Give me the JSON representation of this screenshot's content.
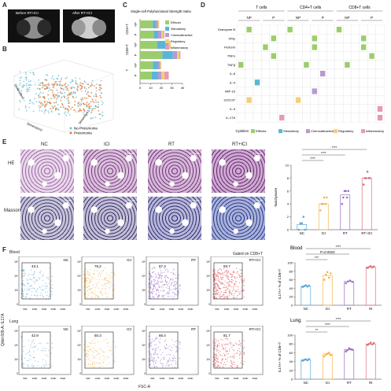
{
  "panels": {
    "A": {
      "letter": "A",
      "before": "Before RT+ICI",
      "after": "After RT+ICI"
    },
    "B": {
      "letter": "B",
      "axis1": "Dimension1",
      "axis2": "Dimension2",
      "axis3": "Dimension3",
      "ticks_d1": [
        "-10",
        "-5",
        "0",
        "5",
        "10"
      ],
      "ticks_d2": [
        "-10",
        "-5",
        "0",
        "5",
        "10"
      ],
      "ticks_d3": [
        "-10",
        "0",
        "10"
      ],
      "legend": [
        "No Pneumonia",
        "Pneumonia"
      ],
      "colors": {
        "no": "#6fc4d4",
        "yes": "#e07a3a"
      }
    },
    "C": {
      "letter": "C"
    },
    "D": {
      "letter": "D"
    },
    "E": {
      "letter": "E",
      "row_he": "HE",
      "row_masson": "Masson",
      "cols": [
        "NC",
        "ICI",
        "RT",
        "RT+ICI"
      ],
      "scale": "100μm"
    },
    "F": {
      "letter": "F",
      "gate": "Gated on CD8+T",
      "row_blood": "Blood",
      "row_lung": "Lung",
      "cols": [
        "NC",
        "ICI",
        "RT",
        "RT+ICI"
      ],
      "blood_pct": [
        "43.1",
        "76.2",
        "57.3",
        "93.7"
      ],
      "lung_pct": [
        "42.9",
        "50.3",
        "66.4",
        "81.7"
      ],
      "yaxis": "Qdot 605-A::IL17A",
      "xaxis": "FSC-A",
      "xticks": [
        "50K",
        "100K",
        "150K",
        "200K",
        "250K"
      ],
      "yticks": [
        "10⁵",
        "10⁴",
        "10³",
        "0"
      ]
    }
  },
  "chart_data": [
    {
      "type": "bar",
      "orientation": "horizontal",
      "id": "C",
      "title": "Single-cell Polyfunctional Strength Index",
      "categories": [
        "NP",
        "P",
        "NP",
        "P",
        "NP",
        "P"
      ],
      "groups": [
        "CD4+T",
        "CD8+T",
        "T"
      ],
      "xticks": [
        "0",
        "10",
        "20",
        "30",
        "40"
      ],
      "xlim": [
        0,
        40
      ],
      "series": [
        {
          "name": "Effector",
          "color": "#9ccd6c",
          "values": [
            12,
            13,
            16,
            21,
            12,
            11
          ]
        },
        {
          "name": "Stimulatory",
          "color": "#5bb5d6",
          "values": [
            3,
            4,
            8,
            10,
            5,
            6
          ]
        },
        {
          "name": "Chemoattractive",
          "color": "#b79bd0",
          "values": [
            2,
            3,
            3,
            4,
            2,
            3
          ]
        },
        {
          "name": "Regulatory",
          "color": "#f2cf7a",
          "values": [
            1,
            2,
            2,
            2,
            1,
            3
          ]
        },
        {
          "name": "Inflammatory",
          "color": "#e69bb3",
          "values": [
            0,
            1,
            0,
            1,
            0,
            4
          ]
        }
      ]
    },
    {
      "type": "heatmap",
      "id": "D",
      "groups": [
        "T cells",
        "CD4+T cells",
        "CD8+T cells"
      ],
      "subgroups": [
        "NP",
        "P",
        "NP",
        "P",
        "NP",
        "P"
      ],
      "rows": [
        "Granzyme B",
        "IFNγ",
        "Perforin",
        "TNFα",
        "TNFβ",
        "IL-8",
        "IL-4",
        "MIP-1b",
        "sCD137",
        "IL-5",
        "IL-17A"
      ],
      "row_category": [
        "Effector",
        "Effector",
        "Effector",
        "Effector",
        "Effector",
        "Chemoattractive",
        "Stimulatory",
        "Chemoattractive",
        "Regulatory",
        "Inflammatory",
        "Inflammatory"
      ],
      "ncols": 18,
      "filled": [
        [
          0,
          [
            1,
            6,
            12
          ]
        ],
        [
          1,
          [
            4,
            9,
            15
          ]
        ],
        [
          2,
          [
            3,
            9,
            15
          ]
        ],
        [
          3,
          [
            4,
            16
          ]
        ],
        [
          4,
          [
            0,
            8,
            13
          ]
        ],
        [
          5,
          [
            10
          ]
        ],
        [
          6,
          [
            2
          ]
        ],
        [
          7,
          [
            9
          ]
        ],
        [
          8,
          [
            1,
            7
          ]
        ],
        [
          9,
          [
            17
          ]
        ],
        [
          10,
          [
            5,
            17
          ]
        ]
      ],
      "legend_title": "Cytokine:",
      "legend": [
        "Effector",
        "Stimulatory",
        "Chemoattractive",
        "Regulatory",
        "Inflammatory"
      ],
      "colors": [
        "#9ccd6c",
        "#5bb5d6",
        "#b79bd0",
        "#f2cf7a",
        "#e69bb3"
      ]
    },
    {
      "type": "scatter",
      "id": "E",
      "ylabel": "Toxicityscore",
      "categories": [
        "NC",
        "ICI",
        "RT",
        "RT+ICI"
      ],
      "ylim": [
        0,
        10
      ],
      "yticks": [
        "0",
        "2",
        "4",
        "6",
        "8",
        "10"
      ],
      "colors": [
        "#5aa7d6",
        "#f3b54a",
        "#9a6fc9",
        "#e0707a"
      ],
      "means": [
        0.8,
        4.0,
        5.4,
        8.0
      ],
      "points": [
        [
          0,
          1,
          1,
          2,
          0
        ],
        [
          3,
          4,
          4,
          5,
          4,
          5
        ],
        [
          4,
          5,
          6,
          6,
          5,
          6
        ],
        [
          7,
          8,
          8,
          9,
          8,
          8
        ]
      ],
      "sig": [
        "****",
        "****",
        "****"
      ]
    },
    {
      "type": "scatter",
      "id": "F-blood",
      "title": "Blood",
      "ylabel": "IL17A+ % of CD8+T",
      "categories": [
        "NC",
        "ICI",
        "RT",
        "RI"
      ],
      "ylim": [
        0,
        100
      ],
      "yticks": [
        "0",
        "20",
        "40",
        "60",
        "80",
        "100"
      ],
      "colors": [
        "#5aa7d6",
        "#f3b54a",
        "#9a6fc9",
        "#e0707a"
      ],
      "means": [
        45,
        70,
        56,
        90
      ],
      "points": [
        [
          43,
          45,
          47,
          44,
          46
        ],
        [
          60,
          72,
          78,
          65,
          75
        ],
        [
          52,
          56,
          58,
          55
        ],
        [
          88,
          90,
          92,
          89,
          91
        ]
      ],
      "sig": [
        "****",
        "P=0.0023",
        "***"
      ]
    },
    {
      "type": "scatter",
      "id": "F-lung",
      "title": "Lung",
      "ylabel": "IL17A+ % of CD8+T",
      "categories": [
        "NC",
        "ICI",
        "RT",
        "RI"
      ],
      "ylim": [
        0,
        100
      ],
      "yticks": [
        "0",
        "20",
        "40",
        "60",
        "80",
        "100"
      ],
      "colors": [
        "#5aa7d6",
        "#f3b54a",
        "#9a6fc9",
        "#e0707a"
      ],
      "means": [
        44,
        57,
        67,
        80
      ],
      "points": [
        [
          42,
          44,
          45,
          43,
          46
        ],
        [
          52,
          56,
          58,
          60,
          55
        ],
        [
          63,
          66,
          70,
          68,
          67
        ],
        [
          78,
          80,
          83,
          79,
          82
        ]
      ],
      "sig": [
        "****",
        "****",
        "**"
      ]
    }
  ]
}
